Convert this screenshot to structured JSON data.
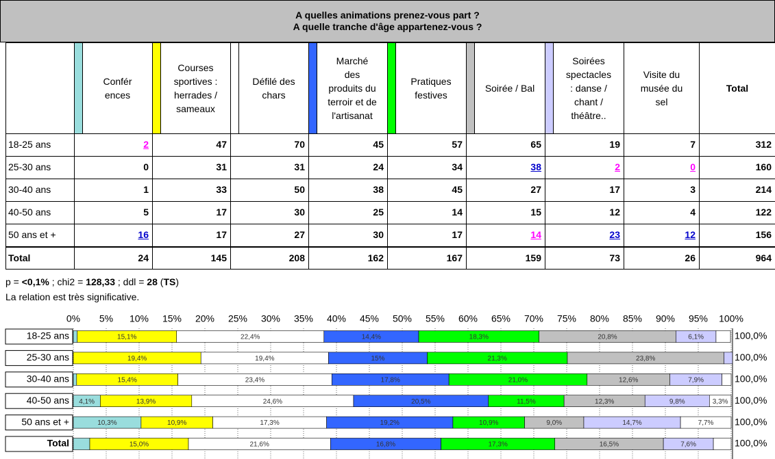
{
  "title": [
    "A quelles animations prenez-vous part ?",
    "A quelle tranche d'âge appartenez-vous ?"
  ],
  "table": {
    "columns": [
      {
        "label": "Confér\nences",
        "color": "#99dddd"
      },
      {
        "label": "Courses\nsportives :\nherrades /\nsameaux",
        "color": "#ffff00"
      },
      {
        "label": "Défilé des\nchars",
        "color": "#ffffff"
      },
      {
        "label": "Marché\ndes\nproduits du\nterroir et de\nl'artisanat",
        "color": "#3366ff"
      },
      {
        "label": "Pratiques\nfestives",
        "color": "#00ff00"
      },
      {
        "label": "Soirée / Bal",
        "color": "#c0c0c0"
      },
      {
        "label": "Soirées\nspectacles\n: danse /\nchant /\nthéâtre..",
        "color": "#ccccff"
      },
      {
        "label": "Visite du\nmusée du\nsel"
      },
      {
        "label": "Total"
      }
    ],
    "rows": [
      {
        "label": "18-25 ans",
        "values": [
          {
            "value": 2,
            "color": "#ff00ff"
          },
          47,
          70,
          45,
          57,
          65,
          19,
          7,
          312
        ]
      },
      {
        "label": "25-30 ans",
        "values": [
          0,
          31,
          31,
          24,
          34,
          {
            "value": 38,
            "color": "#0000cc"
          },
          {
            "value": 2,
            "color": "#ff00ff"
          },
          {
            "value": 0,
            "color": "#ff00ff"
          },
          160
        ]
      },
      {
        "label": "30-40 ans",
        "values": [
          1,
          33,
          50,
          38,
          45,
          27,
          17,
          3,
          214
        ]
      },
      {
        "label": "40-50 ans",
        "values": [
          5,
          17,
          30,
          25,
          14,
          15,
          12,
          4,
          122
        ]
      },
      {
        "label": "50 ans et +",
        "values": [
          {
            "value": 16,
            "color": "#0000cc"
          },
          17,
          27,
          30,
          17,
          {
            "value": 14,
            "color": "#ff00ff"
          },
          {
            "value": 23,
            "color": "#0000cc"
          },
          {
            "value": 12,
            "color": "#0000cc"
          },
          156
        ]
      },
      {
        "label": "Total",
        "values": [
          24,
          145,
          208,
          162,
          167,
          159,
          73,
          26,
          964
        ]
      }
    ]
  },
  "stats": [
    {
      "text": "p = "
    },
    {
      "text": "<0,1%",
      "bold": true
    },
    {
      "text": " ; chi2 = "
    },
    {
      "text": "128,33",
      "bold": true
    },
    {
      "text": " ; ddl = "
    },
    {
      "text": "28",
      "bold": true
    },
    {
      "text": " ("
    },
    {
      "text": "TS",
      "bold": true
    },
    {
      "text": ")"
    }
  ],
  "conclusion": "La relation est très significative.",
  "chart_data": {
    "type": "stacked-barh",
    "categories": [
      "18-25 ans",
      "25-30 ans",
      "30-40 ans",
      "40-50 ans",
      "50 ans et +",
      "Total"
    ],
    "xlim": [
      0,
      100
    ],
    "xticks": [
      {
        "value": 0,
        "label": "0%"
      },
      {
        "value": 5,
        "label": "5%"
      },
      {
        "value": 10,
        "label": "10%"
      },
      {
        "value": 15,
        "label": "15%"
      },
      {
        "value": 20,
        "label": "20%"
      },
      {
        "value": 25,
        "label": "25%"
      },
      {
        "value": 30,
        "label": "30%"
      },
      {
        "value": 35,
        "label": "35%"
      },
      {
        "value": 40,
        "label": "40%"
      },
      {
        "value": 45,
        "label": "45%"
      },
      {
        "value": 50,
        "label": "50%"
      },
      {
        "value": 55,
        "label": "55%"
      },
      {
        "value": 60,
        "label": "60%"
      },
      {
        "value": 65,
        "label": "65%"
      },
      {
        "value": 70,
        "label": "70%"
      },
      {
        "value": 75,
        "label": "75%"
      },
      {
        "value": 80,
        "label": "80%"
      },
      {
        "value": 85,
        "label": "85%"
      },
      {
        "value": 90,
        "label": "90%"
      },
      {
        "value": 95,
        "label": "95%"
      },
      {
        "value": 100,
        "label": "100%"
      }
    ],
    "grid": true,
    "series": [
      {
        "color": "#99dddd",
        "values": [
          0.6,
          0,
          0.5,
          4.1,
          10.3,
          2.5
        ],
        "value_labels": [
          null,
          null,
          null,
          "4,1%",
          "10,3%",
          null
        ]
      },
      {
        "color": "#ffff00",
        "values": [
          15.1,
          19.4,
          15.4,
          13.9,
          10.9,
          15.0
        ],
        "value_labels": [
          "15,1%",
          "19,4%",
          "15,4%",
          "13,9%",
          "10,9%",
          "15,0%"
        ]
      },
      {
        "color": "#ffffff",
        "values": [
          22.4,
          19.4,
          23.4,
          24.6,
          17.3,
          21.6
        ],
        "value_labels": [
          "22,4%",
          "19,4%",
          "23,4%",
          "24,6%",
          "17,3%",
          "21,6%"
        ]
      },
      {
        "color": "#3366ff",
        "values": [
          14.4,
          15,
          17.8,
          20.5,
          19.2,
          16.8
        ],
        "value_labels": [
          "14,4%",
          "15%",
          "17,8%",
          "20,5%",
          "19,2%",
          "16,8%"
        ]
      },
      {
        "color": "#00ff00",
        "values": [
          18.3,
          21.3,
          21.0,
          11.5,
          10.9,
          17.3
        ],
        "value_labels": [
          "18,3%",
          "21,3%",
          "21,0%",
          "11,5%",
          "10,9%",
          "17,3%"
        ]
      },
      {
        "color": "#c0c0c0",
        "values": [
          20.8,
          23.8,
          12.6,
          12.3,
          9.0,
          16.5
        ],
        "value_labels": [
          "20,8%",
          "23,8%",
          "12,6%",
          "12,3%",
          "9,0%",
          "16,5%"
        ]
      },
      {
        "color": "#ccccff",
        "values": [
          6.1,
          1.3,
          7.9,
          9.8,
          14.7,
          7.6
        ],
        "value_labels": [
          "6,1%",
          null,
          "7,9%",
          "9,8%",
          "14,7%",
          "7,6%"
        ]
      },
      {
        "color": "#ffffff",
        "values": [
          2.2,
          0,
          1.4,
          3.3,
          7.7,
          2.7
        ],
        "value_labels": [
          null,
          null,
          null,
          "3,3%",
          "7,7%",
          null
        ]
      }
    ],
    "total_labels": [
      "100,0%",
      "100,0%",
      "100,0%",
      "100,0%",
      "100,0%",
      "100,0%"
    ]
  }
}
